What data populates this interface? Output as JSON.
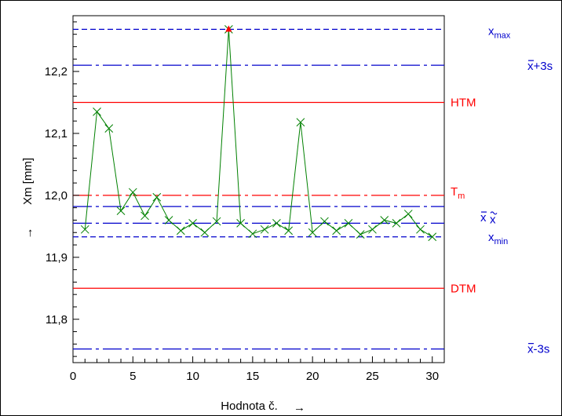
{
  "chart_data": {
    "type": "line",
    "xlabel": "Hodnota č.",
    "ylabel": "Xm [mm]",
    "xlim": [
      0,
      31
    ],
    "ylim": [
      11.73,
      12.29
    ],
    "x_ticks": [
      0,
      5,
      10,
      15,
      20,
      25,
      30
    ],
    "x_tick_labels": [
      "0",
      "5",
      "10",
      "15",
      "20",
      "25",
      "30"
    ],
    "y_ticks": [
      11.8,
      11.9,
      12.0,
      12.1,
      12.2
    ],
    "y_tick_labels": [
      "11,8",
      "11,9",
      "12,0",
      "12,1",
      "12,2"
    ],
    "grid": false,
    "series": [
      {
        "color": "#008000",
        "marker": "x",
        "x": [
          1,
          2,
          3,
          4,
          5,
          6,
          7,
          8,
          9,
          10,
          11,
          12,
          13,
          14,
          15,
          16,
          17,
          18,
          19,
          20,
          21,
          22,
          23,
          24,
          25,
          26,
          27,
          28,
          29,
          30
        ],
        "values": [
          11.945,
          12.135,
          12.108,
          11.975,
          12.005,
          11.967,
          11.997,
          11.96,
          11.943,
          11.955,
          11.94,
          11.958,
          12.268,
          11.955,
          11.938,
          11.945,
          11.955,
          11.943,
          12.118,
          11.94,
          11.958,
          11.943,
          11.955,
          11.937,
          11.945,
          11.96,
          11.955,
          11.97,
          11.945,
          11.933
        ]
      }
    ],
    "max_marker": {
      "x": 13,
      "y": 12.268,
      "color": "#ff0000"
    },
    "reference_lines": [
      {
        "key": "xmax",
        "y": 12.268,
        "color": "#0000cc",
        "style": "dashed",
        "label_main": "x",
        "label_sub": "max",
        "overline": false,
        "tilde": false
      },
      {
        "key": "ucl",
        "y": 12.21,
        "color": "#0000cc",
        "style": "dashdot",
        "label_main": "x",
        "label_rest": "+3s",
        "overline": true,
        "tilde": false
      },
      {
        "key": "htm",
        "y": 12.15,
        "color": "#ff0000",
        "style": "solid",
        "label_main": "HTM",
        "overline": false,
        "tilde": false
      },
      {
        "key": "tm",
        "y": 12.0,
        "color": "#ff0000",
        "style": "dashdot",
        "label_main": "T",
        "label_sub": "m",
        "overline": false,
        "tilde": false
      },
      {
        "key": "mean",
        "y": 11.982,
        "color": "#0000cc",
        "style": "dashdot",
        "label_main": "x",
        "overline": true,
        "tilde": false
      },
      {
        "key": "median",
        "y": 11.955,
        "color": "#0000cc",
        "style": "dashdot",
        "label_main": "x",
        "overline": false,
        "tilde": true
      },
      {
        "key": "xmin",
        "y": 11.933,
        "color": "#0000cc",
        "style": "dashed",
        "label_main": "x",
        "label_sub": "min",
        "overline": false,
        "tilde": false
      },
      {
        "key": "dtm",
        "y": 11.85,
        "color": "#ff0000",
        "style": "solid",
        "label_main": "DTM",
        "overline": false,
        "tilde": false
      },
      {
        "key": "lcl",
        "y": 11.752,
        "color": "#0000cc",
        "style": "dashdot",
        "label_main": "x",
        "label_rest": "-3s",
        "overline": true,
        "tilde": false
      }
    ]
  }
}
